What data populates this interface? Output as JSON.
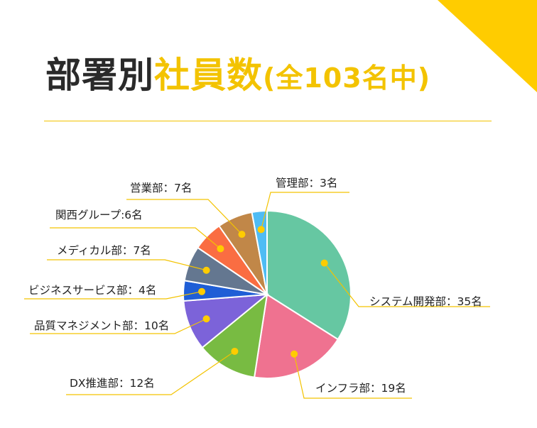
{
  "header": {
    "title_part1": "部署別",
    "title_part2": "社員数",
    "title_total": "(全103名中)"
  },
  "colors": {
    "accent": "#ffcc00",
    "leader": "#f3c300",
    "dot": "#ffcc00"
  },
  "chart_data": {
    "type": "pie",
    "title": "部署別社員数(全103名中)",
    "start": "top, clockwise",
    "series": [
      {
        "name": "システム開発部",
        "value": 35,
        "label": "システム開発部：35名",
        "color": "#66c7a2"
      },
      {
        "name": "インフラ部",
        "value": 19,
        "label": "インフラ部：19名",
        "color": "#ef7290"
      },
      {
        "name": "DX推進部",
        "value": 12,
        "label": "DX推進部：12名",
        "color": "#78bb42"
      },
      {
        "name": "品質マネジメント部",
        "value": 10,
        "label": "品質マネジメント部：10名",
        "color": "#7c63d9"
      },
      {
        "name": "ビジネスサービス部",
        "value": 4,
        "label": "ビジネスサービス部：4名",
        "color": "#1f5ed6"
      },
      {
        "name": "メディカル部",
        "value": 7,
        "label": "メディカル部：7名",
        "color": "#647790"
      },
      {
        "name": "関西グループ",
        "value": 6,
        "label": "関西グループ:6名",
        "color": "#fa6d42"
      },
      {
        "name": "営業部",
        "value": 7,
        "label": "営業部：7名",
        "color": "#c18748"
      },
      {
        "name": "管理部",
        "value": 3,
        "label": "管理部：3名",
        "color": "#4fbcf4"
      }
    ]
  }
}
